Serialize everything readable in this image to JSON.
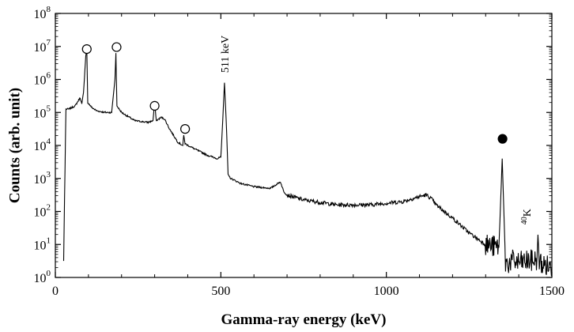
{
  "chart_data": {
    "type": "line",
    "title": "",
    "xlabel": "Gamma-ray energy (keV)",
    "ylabel": "Counts (arb. unit)",
    "xlim": [
      0,
      1500
    ],
    "ylim_log10": [
      0,
      8
    ],
    "yscale": "log",
    "grid": false,
    "legend": "none",
    "xticks": [
      {
        "value": 0,
        "label": "0"
      },
      {
        "value": 500,
        "label": "500"
      },
      {
        "value": 1000,
        "label": "1000"
      },
      {
        "value": 1500,
        "label": "1500"
      }
    ],
    "yticks": [
      {
        "exp": 0,
        "base": "10",
        "sup": "0"
      },
      {
        "exp": 1,
        "base": "10",
        "sup": "1"
      },
      {
        "exp": 2,
        "base": "10",
        "sup": "2"
      },
      {
        "exp": 3,
        "base": "10",
        "sup": "3"
      },
      {
        "exp": 4,
        "base": "10",
        "sup": "4"
      },
      {
        "exp": 5,
        "base": "10",
        "sup": "5"
      },
      {
        "exp": 6,
        "base": "10",
        "sup": "6"
      },
      {
        "exp": 7,
        "base": "10",
        "sup": "7"
      },
      {
        "exp": 8,
        "base": "10",
        "sup": "8"
      }
    ],
    "spectrum": {
      "x_keV": [
        25,
        28,
        32,
        40,
        60,
        75,
        80,
        85,
        92,
        95,
        98,
        110,
        125,
        150,
        170,
        180,
        183,
        186,
        200,
        240,
        280,
        295,
        300,
        305,
        320,
        330,
        345,
        370,
        385,
        388,
        392,
        420,
        460,
        490,
        500,
        506,
        511,
        516,
        522,
        530,
        560,
        600,
        650,
        680,
        690,
        700,
        750,
        850,
        950,
        1000,
        1050,
        1100,
        1120,
        1135,
        1150,
        1200,
        1250,
        1300,
        1320,
        1340,
        1346,
        1350,
        1355,
        1360,
        1380,
        1400,
        1430,
        1440,
        1455,
        1458,
        1462,
        1470,
        1500
      ],
      "counts_log10": [
        0.5,
        2.5,
        5.1,
        5.1,
        5.2,
        5.45,
        5.25,
        5.6,
        6.7,
        6.9,
        5.3,
        5.15,
        5.05,
        5.0,
        5.0,
        6.0,
        6.8,
        5.2,
        5.0,
        4.75,
        4.7,
        4.75,
        5.3,
        4.75,
        4.85,
        4.8,
        4.5,
        4.1,
        4.0,
        4.3,
        4.05,
        3.9,
        3.7,
        3.6,
        3.65,
        4.8,
        5.9,
        4.8,
        3.1,
        3.0,
        2.85,
        2.75,
        2.7,
        2.9,
        2.6,
        2.5,
        2.35,
        2.2,
        2.2,
        2.25,
        2.3,
        2.45,
        2.5,
        2.4,
        2.2,
        1.8,
        1.35,
        1.0,
        0.95,
        0.9,
        2.5,
        3.6,
        2.0,
        0.4,
        0.5,
        0.45,
        0.5,
        0.5,
        0.55,
        1.25,
        0.5,
        0.4,
        0.3
      ]
    },
    "markers": [
      {
        "x_keV": 95,
        "log10": 6.92,
        "fill": "open"
      },
      {
        "x_keV": 185,
        "log10": 6.98,
        "fill": "open"
      },
      {
        "x_keV": 300,
        "log10": 5.2,
        "fill": "open"
      },
      {
        "x_keV": 392,
        "log10": 4.5,
        "fill": "open"
      },
      {
        "x_keV": 1351,
        "log10": 4.2,
        "fill": "filled"
      }
    ],
    "annotations": [
      {
        "id": "annihilation",
        "text": "511 keV",
        "x_keV": 511
      },
      {
        "id": "potassium",
        "sup": "40",
        "text": "K",
        "x_keV": 1460
      }
    ]
  },
  "colors": {
    "line": "#000000",
    "axis": "#000000",
    "background": "#ffffff"
  }
}
